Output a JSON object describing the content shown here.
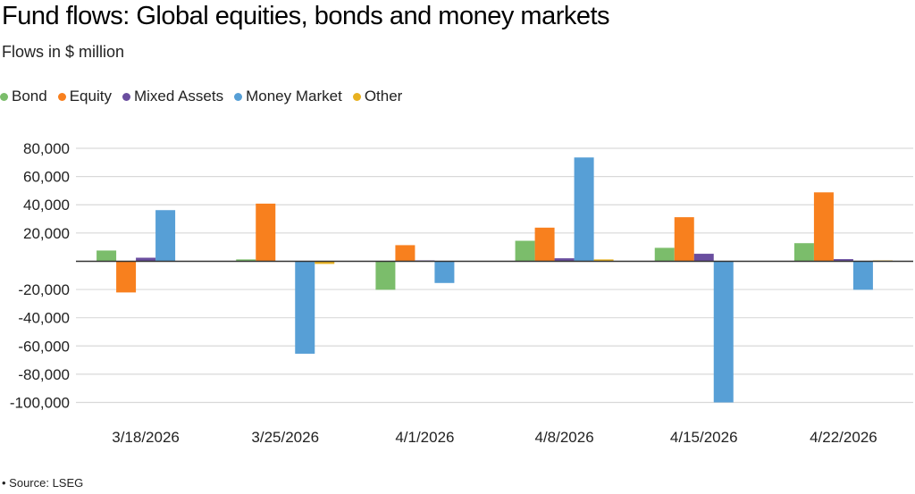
{
  "chart_data": {
    "type": "bar",
    "title": "Fund flows: Global equities, bonds and money markets",
    "subtitle": "Flows in $ million",
    "source": "• Source: LSEG",
    "categories": [
      "3/18/2026",
      "3/25/2026",
      "4/1/2026",
      "4/8/2026",
      "4/15/2026",
      "4/22/2026"
    ],
    "series": [
      {
        "name": "Bond",
        "color": "#7bbd6b",
        "values": [
          7600,
          1300,
          -20200,
          14500,
          9500,
          12800
        ]
      },
      {
        "name": "Equity",
        "color": "#f8801e",
        "values": [
          -22100,
          40800,
          11400,
          23800,
          31200,
          48800
        ]
      },
      {
        "name": "Mixed Assets",
        "color": "#6a4e9f",
        "values": [
          2500,
          0,
          600,
          2100,
          5300,
          1500
        ]
      },
      {
        "name": "Money Market",
        "color": "#579fd6",
        "values": [
          36200,
          -65500,
          -15400,
          73500,
          -100000,
          -20200
        ]
      },
      {
        "name": "Other",
        "color": "#e8b120",
        "values": [
          0,
          -1900,
          0,
          1300,
          0,
          600
        ]
      }
    ],
    "ylim": [
      -100000,
      80000
    ],
    "yticks": [
      80000,
      60000,
      40000,
      20000,
      -20000,
      -40000,
      -60000,
      -80000,
      -100000
    ],
    "ytick_labels": [
      "80,000",
      "60,000",
      "40,000",
      "20,000",
      "-20,000",
      "-40,000",
      "-60,000",
      "-80,000",
      "-100,000"
    ],
    "grid": true,
    "legend": "top-left"
  }
}
